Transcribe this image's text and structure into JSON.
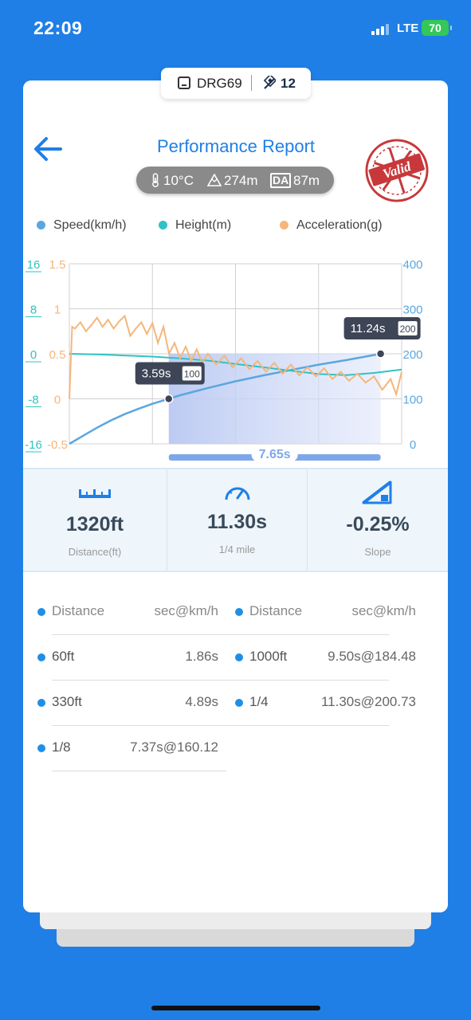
{
  "status_bar": {
    "time": "22:09",
    "network": "LTE",
    "battery": "70"
  },
  "tag": {
    "car": "DRG69",
    "count": "12"
  },
  "header": {
    "title": "Performance Report",
    "stamp_text": "Valid"
  },
  "conditions": {
    "temperature": "10°C",
    "altitude": "274m",
    "da_label": "DA",
    "density_altitude": "87m"
  },
  "legend": [
    {
      "label": "Speed(km/h)",
      "color": "#5aa7e0"
    },
    {
      "label": "Height(m)",
      "color": "#2fc3c3"
    },
    {
      "label": "Acceleration(g)",
      "color": "#f5b67a"
    }
  ],
  "chart_data": {
    "type": "line",
    "left_axis_height": {
      "ticks": [
        "16",
        "8",
        "0",
        "-8",
        "-16"
      ],
      "ylim": [
        -16,
        16
      ],
      "color": "#2fc3c3"
    },
    "left_axis_accel": {
      "ticks": [
        "1.5",
        "1",
        "0.5",
        "0",
        "-0.5"
      ],
      "ylim": [
        -0.5,
        1.5
      ],
      "color": "#f5b67a"
    },
    "right_axis_speed": {
      "ticks": [
        "400",
        "300",
        "200",
        "100",
        "0"
      ],
      "ylim": [
        0,
        400
      ],
      "color": "#5aa7e0"
    },
    "xlim": [
      0,
      12
    ],
    "grid": true,
    "series": [
      {
        "name": "Speed(km/h)",
        "color": "#5aa7e0",
        "x": [
          0,
          0.5,
          1,
          1.5,
          2,
          2.5,
          3,
          3.59,
          4,
          5,
          6,
          7,
          8,
          9,
          10,
          11.24
        ],
        "y": [
          0,
          18,
          36,
          52,
          66,
          78,
          89,
          100,
          108,
          124,
          139,
          152,
          164,
          176,
          186,
          200
        ]
      },
      {
        "name": "Height(m)",
        "color": "#2fc3c3",
        "x": [
          0,
          1,
          2,
          3,
          4,
          5,
          6,
          7,
          8,
          9,
          10,
          11,
          12
        ],
        "y": [
          0,
          -0.1,
          -0.3,
          -0.5,
          -0.8,
          -1.2,
          -1.8,
          -2.4,
          -3,
          -3.6,
          -3.8,
          -3.4,
          -2.8
        ]
      },
      {
        "name": "Acceleration(g)",
        "color": "#f5b67a",
        "x": [
          0,
          0.1,
          0.2,
          0.4,
          0.6,
          0.8,
          1.0,
          1.2,
          1.4,
          1.6,
          1.8,
          2.0,
          2.2,
          2.4,
          2.6,
          2.8,
          3.0,
          3.2,
          3.4,
          3.6,
          3.8,
          4.0,
          4.2,
          4.4,
          4.6,
          4.8,
          5.0,
          5.3,
          5.6,
          5.9,
          6.2,
          6.5,
          6.8,
          7.1,
          7.4,
          7.7,
          8.0,
          8.3,
          8.6,
          8.9,
          9.2,
          9.5,
          9.8,
          10.1,
          10.4,
          10.7,
          11.0,
          11.3,
          11.6,
          11.8,
          12.0
        ],
        "y": [
          0,
          0.8,
          0.78,
          0.85,
          0.75,
          0.82,
          0.9,
          0.8,
          0.88,
          0.78,
          0.86,
          0.92,
          0.7,
          0.78,
          0.85,
          0.72,
          0.84,
          0.62,
          0.8,
          0.5,
          0.62,
          0.45,
          0.58,
          0.42,
          0.55,
          0.4,
          0.5,
          0.38,
          0.48,
          0.35,
          0.45,
          0.33,
          0.42,
          0.3,
          0.4,
          0.28,
          0.38,
          0.26,
          0.35,
          0.25,
          0.34,
          0.22,
          0.3,
          0.2,
          0.28,
          0.18,
          0.25,
          0.1,
          0.22,
          0.05,
          0.3
        ]
      }
    ],
    "annotations": [
      {
        "label": "3.59s",
        "badge": "100",
        "x": 3.59,
        "y": 100
      },
      {
        "label": "11.24s",
        "badge": "200",
        "x": 11.24,
        "y": 200
      }
    ],
    "range_span": {
      "label": "7.65s",
      "from": 3.59,
      "to": 11.24
    }
  },
  "stats": [
    {
      "value": "1320ft",
      "label": "Distance(ft)",
      "icon": "ruler-icon"
    },
    {
      "value": "11.30s",
      "label": "1/4 mile",
      "icon": "speedometer-icon"
    },
    {
      "value": "-0.25%",
      "label": "Slope",
      "icon": "slope-icon"
    }
  ],
  "splits": {
    "header": {
      "key": "Distance",
      "value": "sec@km/h"
    },
    "left": [
      {
        "key": "60ft",
        "value": "1.86s"
      },
      {
        "key": "330ft",
        "value": "4.89s"
      },
      {
        "key": "1/8",
        "value": "7.37s@160.12"
      }
    ],
    "right": [
      {
        "key": "1000ft",
        "value": "9.50s@184.48"
      },
      {
        "key": "1/4",
        "value": "11.30s@200.73"
      }
    ]
  }
}
